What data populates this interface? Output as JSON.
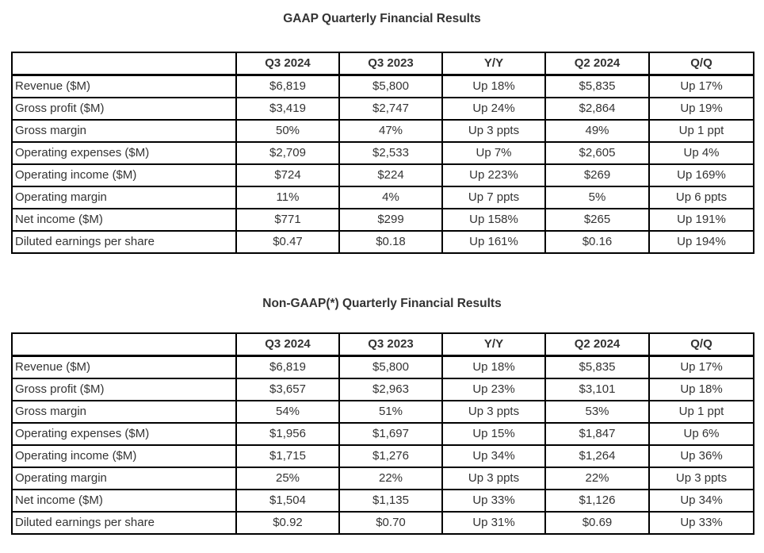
{
  "text_color": "#333333",
  "border_color": "#000000",
  "tables": [
    {
      "title": "GAAP Quarterly Financial Results",
      "columns": [
        "",
        "Q3 2024",
        "Q3 2023",
        "Y/Y",
        "Q2 2024",
        "Q/Q"
      ],
      "rows": [
        [
          "Revenue ($M)",
          "$6,819",
          "$5,800",
          "Up 18%",
          "$5,835",
          "Up 17%"
        ],
        [
          "Gross profit ($M)",
          "$3,419",
          "$2,747",
          "Up 24%",
          "$2,864",
          "Up 19%"
        ],
        [
          "Gross margin",
          "50%",
          "47%",
          "Up 3 ppts",
          "49%",
          "Up 1 ppt"
        ],
        [
          "Operating expenses ($M)",
          "$2,709",
          "$2,533",
          "Up 7%",
          "$2,605",
          "Up 4%"
        ],
        [
          "Operating income ($M)",
          "$724",
          "$224",
          "Up 223%",
          "$269",
          "Up 169%"
        ],
        [
          "Operating margin",
          "11%",
          "4%",
          "Up 7 ppts",
          "5%",
          "Up 6 ppts"
        ],
        [
          "Net income ($M)",
          "$771",
          "$299",
          "Up 158%",
          "$265",
          "Up 191%"
        ],
        [
          "Diluted earnings per share",
          "$0.47",
          "$0.18",
          "Up 161%",
          "$0.16",
          "Up 194%"
        ]
      ]
    },
    {
      "title": "Non-GAAP(*) Quarterly Financial Results",
      "columns": [
        "",
        "Q3 2024",
        "Q3 2023",
        "Y/Y",
        "Q2 2024",
        "Q/Q"
      ],
      "rows": [
        [
          "Revenue ($M)",
          "$6,819",
          "$5,800",
          "Up 18%",
          "$5,835",
          "Up 17%"
        ],
        [
          "Gross profit ($M)",
          "$3,657",
          "$2,963",
          "Up 23%",
          "$3,101",
          "Up 18%"
        ],
        [
          "Gross margin",
          "54%",
          "51%",
          "Up 3 ppts",
          "53%",
          "Up 1 ppt"
        ],
        [
          "Operating expenses ($M)",
          "$1,956",
          "$1,697",
          "Up 15%",
          "$1,847",
          "Up 6%"
        ],
        [
          "Operating income ($M)",
          "$1,715",
          "$1,276",
          "Up 34%",
          "$1,264",
          "Up 36%"
        ],
        [
          "Operating margin",
          "25%",
          "22%",
          "Up 3 ppts",
          "22%",
          "Up 3 ppts"
        ],
        [
          "Net income ($M)",
          "$1,504",
          "$1,135",
          "Up 33%",
          "$1,126",
          "Up 34%"
        ],
        [
          "Diluted earnings per share",
          "$0.92",
          "$0.70",
          "Up 31%",
          "$0.69",
          "Up 33%"
        ]
      ]
    }
  ],
  "chart_data": [
    {
      "type": "table",
      "title": "GAAP Quarterly Financial Results",
      "columns": [
        "",
        "Q3 2024",
        "Q3 2023",
        "Y/Y",
        "Q2 2024",
        "Q/Q"
      ],
      "rows": [
        [
          "Revenue ($M)",
          "$6,819",
          "$5,800",
          "Up 18%",
          "$5,835",
          "Up 17%"
        ],
        [
          "Gross profit ($M)",
          "$3,419",
          "$2,747",
          "Up 24%",
          "$2,864",
          "Up 19%"
        ],
        [
          "Gross margin",
          "50%",
          "47%",
          "Up 3 ppts",
          "49%",
          "Up 1 ppt"
        ],
        [
          "Operating expenses ($M)",
          "$2,709",
          "$2,533",
          "Up 7%",
          "$2,605",
          "Up 4%"
        ],
        [
          "Operating income ($M)",
          "$724",
          "$224",
          "Up 223%",
          "$269",
          "Up 169%"
        ],
        [
          "Operating margin",
          "11%",
          "4%",
          "Up 7 ppts",
          "5%",
          "Up 6 ppts"
        ],
        [
          "Net income ($M)",
          "$771",
          "$299",
          "Up 158%",
          "$265",
          "Up 191%"
        ],
        [
          "Diluted earnings per share",
          "$0.47",
          "$0.18",
          "Up 161%",
          "$0.16",
          "Up 194%"
        ]
      ]
    },
    {
      "type": "table",
      "title": "Non-GAAP(*) Quarterly Financial Results",
      "columns": [
        "",
        "Q3 2024",
        "Q3 2023",
        "Y/Y",
        "Q2 2024",
        "Q/Q"
      ],
      "rows": [
        [
          "Revenue ($M)",
          "$6,819",
          "$5,800",
          "Up 18%",
          "$5,835",
          "Up 17%"
        ],
        [
          "Gross profit ($M)",
          "$3,657",
          "$2,963",
          "Up 23%",
          "$3,101",
          "Up 18%"
        ],
        [
          "Gross margin",
          "54%",
          "51%",
          "Up 3 ppts",
          "53%",
          "Up 1 ppt"
        ],
        [
          "Operating expenses ($M)",
          "$1,956",
          "$1,697",
          "Up 15%",
          "$1,847",
          "Up 6%"
        ],
        [
          "Operating income ($M)",
          "$1,715",
          "$1,276",
          "Up 34%",
          "$1,264",
          "Up 36%"
        ],
        [
          "Operating margin",
          "25%",
          "22%",
          "Up 3 ppts",
          "22%",
          "Up 3 ppts"
        ],
        [
          "Net income ($M)",
          "$1,504",
          "$1,135",
          "Up 33%",
          "$1,126",
          "Up 34%"
        ],
        [
          "Diluted earnings per share",
          "$0.92",
          "$0.70",
          "Up 31%",
          "$0.69",
          "Up 33%"
        ]
      ]
    }
  ]
}
